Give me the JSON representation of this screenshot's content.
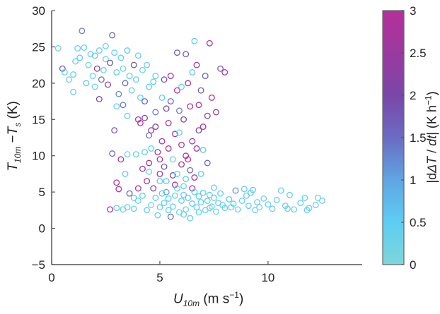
{
  "chart_data": {
    "type": "scatter",
    "xlabel": {
      "var": "U",
      "sub": "10m",
      "units": "(m s",
      "sup": "−1",
      "close": ")"
    },
    "ylabel": {
      "var1": "T",
      "sub1": "10m",
      "minus": " −",
      "var2": "T",
      "sub2": "s",
      "units": " (K)"
    },
    "xlim": [
      0,
      14.35
    ],
    "ylim": [
      -5,
      30
    ],
    "xticks": [
      "0",
      "5",
      "10"
    ],
    "yticks": [
      "-5",
      "0",
      "5",
      "10",
      "15",
      "20",
      "25",
      "30"
    ],
    "grid": false,
    "marker": "open-circle",
    "colorbar": {
      "label": {
        "prefix": "|d",
        "delta": "ΔT",
        "mid": " / ",
        "dt": "dt",
        "suffix": "| (K h",
        "sup": "−1",
        "close": ")"
      },
      "range": [
        0,
        3
      ],
      "ticks": [
        "0",
        "0.5",
        "1",
        "1.5",
        "2",
        "2.5",
        "3"
      ],
      "colors": [
        "#7dd6da",
        "#5ecdf3",
        "#5fa6e2",
        "#6a6cc2",
        "#7a47a8",
        "#9a3aa0",
        "#b5309a"
      ]
    },
    "columns": [
      "x",
      "y",
      "color_value"
    ],
    "points": [
      [
        0.3,
        24.8,
        0.3
      ],
      [
        0.5,
        22,
        1.8
      ],
      [
        0.6,
        21.5,
        0.4
      ],
      [
        0.8,
        20.5,
        0.3
      ],
      [
        1.0,
        21.2,
        0.4
      ],
      [
        1.1,
        23,
        0.5
      ],
      [
        1.2,
        24.8,
        0.4
      ],
      [
        1.3,
        23.5,
        0.5
      ],
      [
        1.4,
        27.2,
        1.3
      ],
      [
        1.5,
        24.9,
        0.4
      ],
      [
        1.6,
        20,
        0.5
      ],
      [
        1.7,
        22.5,
        0.3
      ],
      [
        1.8,
        24,
        0.4
      ],
      [
        1.9,
        21,
        0.3
      ],
      [
        2.0,
        23.8,
        0.5
      ],
      [
        2.1,
        22,
        2.5
      ],
      [
        2.2,
        24.5,
        0.3
      ],
      [
        2.3,
        20.5,
        1.5
      ],
      [
        2.4,
        21.8,
        0.4
      ],
      [
        2.5,
        23.3,
        0.3
      ],
      [
        2.6,
        19.8,
        2.2
      ],
      [
        2.7,
        22.8,
        1.8
      ],
      [
        2.8,
        26.6,
        1.6
      ],
      [
        2.9,
        24.2,
        0.4
      ],
      [
        3.0,
        21.5,
        0.5
      ],
      [
        3.1,
        18.5,
        1.3
      ],
      [
        3.2,
        23.5,
        0.5
      ],
      [
        3.3,
        22,
        0.3
      ],
      [
        3.4,
        20,
        1.5
      ],
      [
        3.5,
        24.5,
        0.5
      ],
      [
        3.6,
        21,
        0.4
      ],
      [
        3.7,
        19,
        0.5
      ],
      [
        3.8,
        22.5,
        1.9
      ],
      [
        3.9,
        20.5,
        0.4
      ],
      [
        4.0,
        23.8,
        0.5
      ],
      [
        4.1,
        18,
        0.4
      ],
      [
        4.2,
        21.8,
        0.3
      ],
      [
        4.3,
        17.5,
        1.6
      ],
      [
        4.4,
        22.5,
        0.4
      ],
      [
        4.5,
        19.5,
        0.5
      ],
      [
        1.0,
        18.8,
        0.4
      ],
      [
        2.0,
        19.5,
        0.3
      ],
      [
        2.5,
        25.1,
        0.4
      ],
      [
        3.0,
        16.8,
        0.4
      ],
      [
        3.3,
        17,
        1.4
      ],
      [
        2.2,
        17.8,
        2.0
      ],
      [
        4.7,
        20.2,
        0.5
      ],
      [
        4.8,
        21,
        0.4
      ],
      [
        3.5,
        15.5,
        0.5
      ],
      [
        2.9,
        13.5,
        1.8
      ],
      [
        4.0,
        15,
        2.8
      ],
      [
        4.1,
        14.5,
        2.9
      ],
      [
        4.3,
        15.2,
        2.0
      ],
      [
        4.5,
        12.8,
        1.5
      ],
      [
        4.6,
        11,
        0.5
      ],
      [
        4.6,
        13.5,
        2.5
      ],
      [
        4.8,
        14,
        2.2
      ],
      [
        4.9,
        10.5,
        2.8
      ],
      [
        5.0,
        9.5,
        2.9
      ],
      [
        5.1,
        12,
        2.6
      ],
      [
        5.2,
        8.5,
        1.8
      ],
      [
        5.3,
        16.5,
        2.0
      ],
      [
        5.4,
        11,
        2.8
      ],
      [
        5.5,
        17.5,
        1.5
      ],
      [
        5.6,
        9.5,
        0.4
      ],
      [
        5.7,
        13,
        2.7
      ],
      [
        5.8,
        19,
        2.9
      ],
      [
        5.9,
        16.2,
        1.4
      ],
      [
        6.0,
        11.5,
        2.9
      ],
      [
        6.1,
        15,
        2.0
      ],
      [
        6.2,
        24,
        1.7
      ],
      [
        6.3,
        20,
        2.9
      ],
      [
        6.4,
        8,
        1.5
      ],
      [
        6.5,
        12,
        2.8
      ],
      [
        6.6,
        25.8,
        0.5
      ],
      [
        6.7,
        22.5,
        2.6
      ],
      [
        6.8,
        17,
        2.8
      ],
      [
        6.9,
        19,
        1.7
      ],
      [
        7.0,
        14,
        2.9
      ],
      [
        7.1,
        21,
        1.6
      ],
      [
        7.2,
        15.5,
        2.2
      ],
      [
        7.3,
        25.5,
        2.8
      ],
      [
        7.4,
        18,
        2.9
      ],
      [
        7.6,
        16,
        2.5
      ],
      [
        7.8,
        22,
        1.7
      ],
      [
        8.0,
        21.5,
        2.9
      ],
      [
        5.8,
        24.2,
        1.8
      ],
      [
        6.5,
        21.5,
        0.6
      ],
      [
        6.0,
        19.5,
        0.4
      ],
      [
        5.5,
        21,
        2.5
      ],
      [
        5.2,
        20.5,
        1.8
      ],
      [
        5.7,
        6,
        2.9
      ],
      [
        6.0,
        8.8,
        2.8
      ],
      [
        6.3,
        9.5,
        2.9
      ],
      [
        6.6,
        7,
        2.8
      ],
      [
        5.0,
        7.5,
        2.6
      ],
      [
        4.5,
        9,
        2.9
      ],
      [
        4.2,
        8.2,
        2.7
      ],
      [
        3.9,
        10.2,
        0.5
      ],
      [
        3.5,
        10.2,
        0.4
      ],
      [
        3.4,
        7.5,
        0.5
      ],
      [
        3.2,
        9.5,
        2.8
      ],
      [
        2.8,
        10.3,
        1.5
      ],
      [
        3.0,
        6.3,
        2.9
      ],
      [
        3.1,
        5.4,
        2.9
      ],
      [
        3.6,
        4.8,
        1.5
      ],
      [
        4.0,
        5.5,
        2.8
      ],
      [
        4.4,
        6.5,
        2.8
      ],
      [
        4.7,
        5.5,
        2.0
      ],
      [
        5.3,
        6.5,
        0.5
      ],
      [
        6.1,
        5.8,
        0.4
      ],
      [
        6.7,
        11,
        2.9
      ],
      [
        7.0,
        10.8,
        0.6
      ],
      [
        5.9,
        13.2,
        0.4
      ],
      [
        5.4,
        14.5,
        2.9
      ],
      [
        6.4,
        16.8,
        2.9
      ],
      [
        6.8,
        13.5,
        2.0
      ],
      [
        4.8,
        16,
        1.4
      ],
      [
        5.1,
        18,
        0.4
      ],
      [
        6.2,
        10,
        2.9
      ],
      [
        6.5,
        5.5,
        2.6
      ],
      [
        7.2,
        9,
        1.6
      ],
      [
        6.9,
        7.5,
        0.5
      ],
      [
        5.6,
        7.3,
        2.1
      ],
      [
        4.3,
        10.5,
        0.4
      ],
      [
        2.7,
        2.6,
        2.9
      ],
      [
        3.0,
        2.8,
        0.4
      ],
      [
        3.3,
        2.6,
        0.3
      ],
      [
        3.5,
        2.9,
        0.4
      ],
      [
        3.8,
        2.7,
        0.3
      ],
      [
        4.0,
        3.8,
        0.4
      ],
      [
        4.2,
        4.5,
        0.5
      ],
      [
        4.4,
        2.5,
        0.4
      ],
      [
        4.6,
        3.2,
        0.3
      ],
      [
        4.8,
        4.2,
        0.5
      ],
      [
        5.0,
        2.9,
        0.4
      ],
      [
        5.1,
        4.8,
        0.5
      ],
      [
        5.2,
        3.5,
        0.3
      ],
      [
        5.3,
        5,
        1.0
      ],
      [
        5.4,
        4.1,
        0.5
      ],
      [
        5.5,
        1.6,
        1.5
      ],
      [
        5.6,
        3,
        0.4
      ],
      [
        5.7,
        4.5,
        0.5
      ],
      [
        5.8,
        5.5,
        0.4
      ],
      [
        5.9,
        2.2,
        0.4
      ],
      [
        6.0,
        3.8,
        0.5
      ],
      [
        6.1,
        4.6,
        0.5
      ],
      [
        6.2,
        2.6,
        0.3
      ],
      [
        6.3,
        4.2,
        0.6
      ],
      [
        6.4,
        1.4,
        0.4
      ],
      [
        6.5,
        3.4,
        0.5
      ],
      [
        6.6,
        5,
        0.5
      ],
      [
        6.7,
        2.9,
        0.3
      ],
      [
        6.8,
        4.4,
        0.5
      ],
      [
        6.9,
        3.6,
        0.4
      ],
      [
        7.0,
        4.9,
        0.5
      ],
      [
        7.1,
        2.5,
        0.3
      ],
      [
        7.2,
        3.8,
        0.5
      ],
      [
        7.3,
        4.6,
        0.5
      ],
      [
        7.4,
        3,
        0.4
      ],
      [
        7.5,
        4.2,
        0.5
      ],
      [
        7.6,
        2.3,
        0.3
      ],
      [
        7.7,
        3.5,
        0.4
      ],
      [
        7.8,
        4.8,
        0.5
      ],
      [
        7.9,
        3.2,
        0.4
      ],
      [
        8.0,
        2.8,
        0.3
      ],
      [
        8.2,
        4,
        0.5
      ],
      [
        8.4,
        3.4,
        0.4
      ],
      [
        8.5,
        5.2,
        1.2
      ],
      [
        8.6,
        2.6,
        0.3
      ],
      [
        8.8,
        3.8,
        0.4
      ],
      [
        9.0,
        4.5,
        0.5
      ],
      [
        9.1,
        3.1,
        0.4
      ],
      [
        9.3,
        5.3,
        0.5
      ],
      [
        9.5,
        3.6,
        0.4
      ],
      [
        9.6,
        2.9,
        0.3
      ],
      [
        9.8,
        4.1,
        0.4
      ],
      [
        10.0,
        3.3,
        0.4
      ],
      [
        10.2,
        2.7,
        0.3
      ],
      [
        10.4,
        3.9,
        0.4
      ],
      [
        10.6,
        5.2,
        0.5
      ],
      [
        10.8,
        3.1,
        0.4
      ],
      [
        11.0,
        4.6,
        0.4
      ],
      [
        11.2,
        2.6,
        0.3
      ],
      [
        11.5,
        3.5,
        0.4
      ],
      [
        11.7,
        4.2,
        0.4
      ],
      [
        11.9,
        2.8,
        0.3
      ],
      [
        12.2,
        3.2,
        0.4
      ],
      [
        12.5,
        3.8,
        0.4
      ],
      [
        12.3,
        4.2,
        0.3
      ],
      [
        11.8,
        2.5,
        0.4
      ],
      [
        9.2,
        4.9,
        0.5
      ],
      [
        8.9,
        5.4,
        0.5
      ],
      [
        7.5,
        5.6,
        0.5
      ],
      [
        6.2,
        6.8,
        0.5
      ],
      [
        5.8,
        7.5,
        0.4
      ],
      [
        5.0,
        6.5,
        0.5
      ],
      [
        4.5,
        7.8,
        0.4
      ],
      [
        3.8,
        4.2,
        0.5
      ],
      [
        6.8,
        2.2,
        0.4
      ],
      [
        7.3,
        2.8,
        0.3
      ],
      [
        8.3,
        2.9,
        0.4
      ],
      [
        9.4,
        2.5,
        0.3
      ],
      [
        5.4,
        2.5,
        0.4
      ],
      [
        4.9,
        1.8,
        0.4
      ],
      [
        6.1,
        1.9,
        0.5
      ],
      [
        10.9,
        2.7,
        0.3
      ]
    ]
  }
}
